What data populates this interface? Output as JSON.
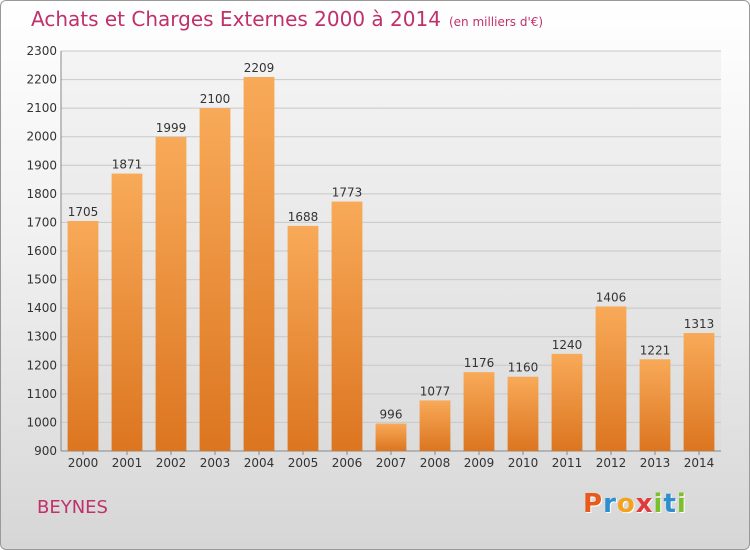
{
  "header": {
    "title": "Achats et Charges Externes 2000 à 2014",
    "subtitle": "(en milliers d'€)"
  },
  "commune": "BEYNES",
  "brand": {
    "letters": [
      "P",
      "r",
      "o",
      "x",
      "i",
      "t",
      "i"
    ],
    "colors": [
      "#e85a1c",
      "#2e8fd0",
      "#f4a21c",
      "#e23a3a",
      "#7bbf2a",
      "#2e8fd0",
      "#7bbf2a"
    ]
  },
  "colors": {
    "bar_light": "#f8aa58",
    "bar_dark": "#dc7520",
    "title": "#c0306a",
    "grid": "#c8c8c8"
  },
  "chart_data": {
    "type": "bar",
    "title": "Achats et Charges Externes 2000 à 2014",
    "subtitle": "(en milliers d'€)",
    "categories": [
      "2000",
      "2001",
      "2002",
      "2003",
      "2004",
      "2005",
      "2006",
      "2007",
      "2008",
      "2009",
      "2010",
      "2011",
      "2012",
      "2013",
      "2014"
    ],
    "values": [
      1705,
      1871,
      1999,
      2100,
      2209,
      1688,
      1773,
      996,
      1077,
      1176,
      1160,
      1240,
      1406,
      1221,
      1313
    ],
    "data_labels": [
      "1705",
      "1871",
      "1999",
      "2100",
      "2209",
      "1688",
      "1773",
      "996",
      "1077",
      "1176",
      "1160",
      "1240",
      "1406",
      "1221",
      "1313"
    ],
    "y_ticks": [
      "900",
      "1000",
      "1100",
      "1200",
      "1300",
      "1400",
      "1500",
      "1600",
      "1700",
      "1800",
      "1900",
      "2000",
      "2100",
      "2200",
      "2300"
    ],
    "ylim": [
      900,
      2300
    ],
    "grid": true,
    "legend": "none"
  }
}
